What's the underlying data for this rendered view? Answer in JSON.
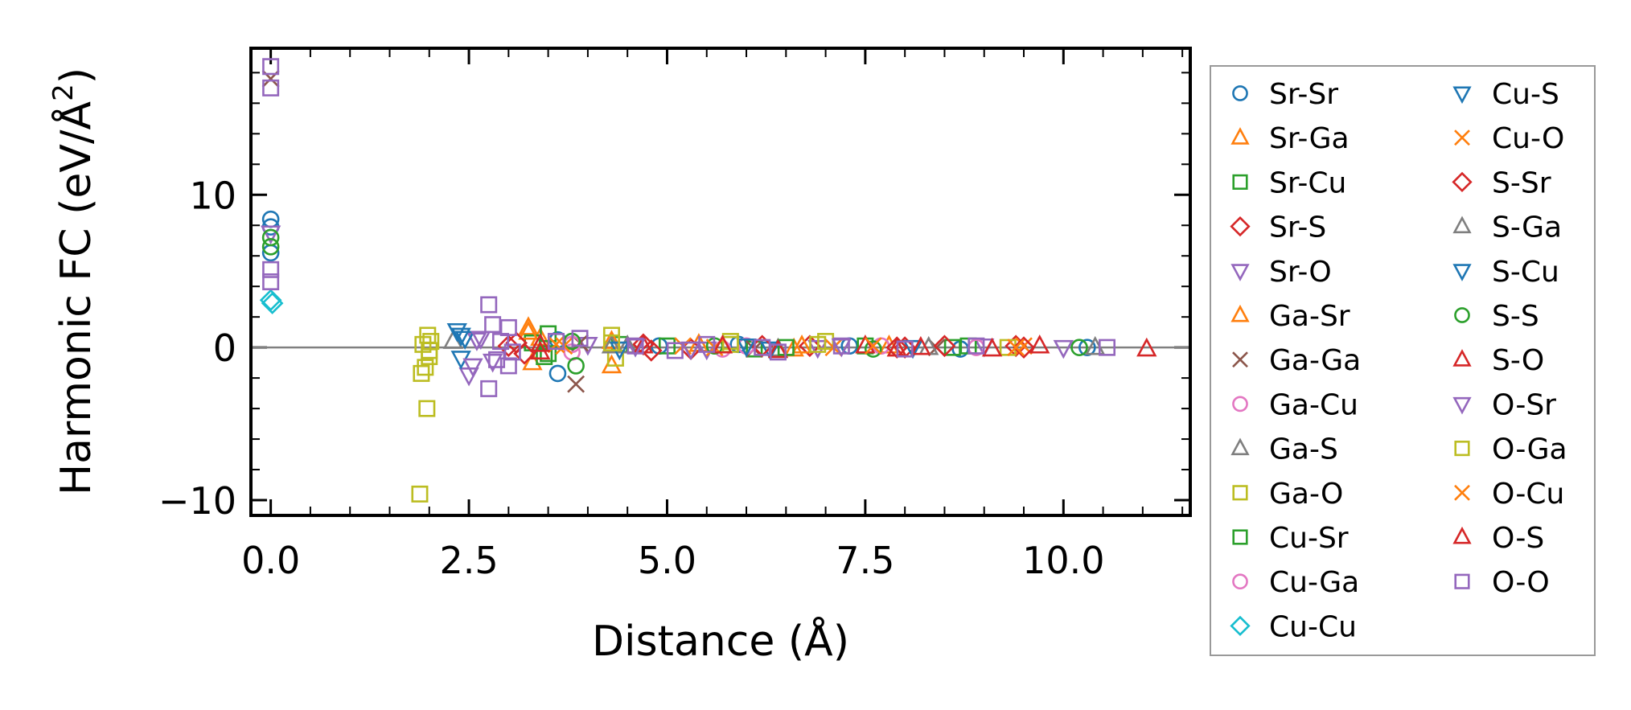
{
  "chart_data": {
    "type": "scatter",
    "title": "",
    "xlabel": "Distance (Å)",
    "ylabel_main": "Harmonic FC (eV/Å",
    "ylabel_sup": "2",
    "ylabel_close": ")",
    "xlim": [
      -0.25,
      11.6
    ],
    "ylim": [
      -11,
      19.6
    ],
    "xticks": [
      0.0,
      2.5,
      5.0,
      7.5,
      10.0
    ],
    "xtick_labels": [
      "0.0",
      "2.5",
      "5.0",
      "7.5",
      "10.0"
    ],
    "yticks": [
      -10,
      0,
      10
    ],
    "ytick_labels": [
      "−10",
      "0",
      "10"
    ],
    "zero_line": 0,
    "legend_location": "outside-right",
    "legend_columns": 2,
    "series": [
      {
        "name": "Sr-Sr",
        "marker": "circle",
        "color": "#1f77b4",
        "points": [
          [
            0,
            8.4
          ],
          [
            0,
            7.9
          ],
          [
            0,
            6.2
          ],
          [
            3.62,
            -1.7
          ],
          [
            3.62,
            0.5
          ],
          [
            4.9,
            0.1
          ],
          [
            5.9,
            0.2
          ],
          [
            7.3,
            0.1
          ],
          [
            8.7,
            -0.1
          ],
          [
            10.3,
            0
          ]
        ]
      },
      {
        "name": "Sr-Ga",
        "marker": "triangle-up",
        "color": "#ff7f0e",
        "points": [
          [
            3.25,
            1.3
          ],
          [
            3.4,
            0.6
          ],
          [
            3.3,
            -1.0
          ],
          [
            4.3,
            -1.2
          ],
          [
            5.4,
            0.2
          ],
          [
            6.6,
            -0.1
          ],
          [
            7.8,
            0.1
          ]
        ]
      },
      {
        "name": "Sr-Cu",
        "marker": "square",
        "color": "#2ca02c",
        "points": [
          [
            3.3,
            0.3
          ],
          [
            3.45,
            -0.6
          ],
          [
            3.5,
            0.9
          ],
          [
            4.4,
            0.2
          ],
          [
            6.1,
            -0.1
          ],
          [
            7.5,
            0.1
          ],
          [
            8.6,
            0
          ]
        ]
      },
      {
        "name": "Sr-S",
        "marker": "diamond",
        "color": "#d62728",
        "points": [
          [
            3.0,
            0.1
          ],
          [
            3.2,
            -0.4
          ],
          [
            4.7,
            0.2
          ],
          [
            5.3,
            -0.1
          ],
          [
            6.8,
            0.1
          ],
          [
            8.0,
            0
          ],
          [
            9.4,
            0.1
          ]
        ]
      },
      {
        "name": "Sr-O",
        "marker": "triangle-down",
        "color": "#9467bd",
        "points": [
          [
            0,
            7.5
          ],
          [
            2.5,
            -1.8
          ],
          [
            2.6,
            0.5
          ],
          [
            2.8,
            -0.9
          ],
          [
            4.0,
            0.2
          ],
          [
            5.5,
            -0.1
          ],
          [
            6.9,
            0
          ],
          [
            9.0,
            0.1
          ]
        ]
      },
      {
        "name": "Ga-Sr",
        "marker": "triangle-up",
        "color": "#ff7f0e",
        "points": [
          [
            3.25,
            1.0
          ],
          [
            4.3,
            0.4
          ],
          [
            6.7,
            0.1
          ],
          [
            7.9,
            -0.1
          ]
        ]
      },
      {
        "name": "Ga-Ga",
        "marker": "x",
        "color": "#8c564b",
        "points": [
          [
            0,
            17.6
          ],
          [
            3.85,
            -2.4
          ],
          [
            3.9,
            0.3
          ],
          [
            6.1,
            -0.1
          ],
          [
            8.4,
            0
          ]
        ]
      },
      {
        "name": "Ga-Cu",
        "marker": "circle",
        "color": "#e377c2",
        "points": [
          [
            3.8,
            0.2
          ],
          [
            5.7,
            -0.1
          ],
          [
            7.7,
            0.1
          ]
        ]
      },
      {
        "name": "Ga-S",
        "marker": "triangle-up",
        "color": "#7f7f7f",
        "points": [
          [
            2.3,
            0.4
          ],
          [
            4.5,
            0.1
          ],
          [
            6.4,
            -0.1
          ],
          [
            8.3,
            0
          ]
        ]
      },
      {
        "name": "Ga-O",
        "marker": "square",
        "color": "#bcbd22",
        "points": [
          [
            1.88,
            -9.6
          ],
          [
            1.9,
            -1.7
          ],
          [
            1.95,
            -1.3
          ],
          [
            1.97,
            -4.0
          ],
          [
            1.98,
            0.8
          ],
          [
            2.0,
            -0.6
          ],
          [
            2.02,
            0.4
          ],
          [
            4.3,
            0.8
          ],
          [
            4.35,
            -0.7
          ],
          [
            5.8,
            0.4
          ],
          [
            7.0,
            0.4
          ],
          [
            9.3,
            0
          ]
        ]
      },
      {
        "name": "Cu-Sr",
        "marker": "square",
        "color": "#2ca02c",
        "points": [
          [
            3.5,
            -0.4
          ],
          [
            5.0,
            0.1
          ],
          [
            6.5,
            0
          ],
          [
            8.8,
            0.1
          ]
        ]
      },
      {
        "name": "Cu-Ga",
        "marker": "circle",
        "color": "#e377c2",
        "points": [
          [
            3.8,
            -0.3
          ],
          [
            6.0,
            0.1
          ],
          [
            8.9,
            0
          ]
        ]
      },
      {
        "name": "Cu-Cu",
        "marker": "diamond",
        "color": "#17becf",
        "points": [
          [
            0,
            3.1
          ],
          [
            0.02,
            2.9
          ]
        ]
      },
      {
        "name": "Cu-S",
        "marker": "triangle-down",
        "color": "#1f77b4",
        "points": [
          [
            2.35,
            1.1
          ],
          [
            2.4,
            -0.7
          ],
          [
            2.45,
            0.6
          ],
          [
            4.6,
            0.1
          ],
          [
            6.3,
            -0.1
          ],
          [
            8.1,
            0
          ]
        ]
      },
      {
        "name": "Cu-O",
        "marker": "x",
        "color": "#ff7f0e",
        "points": [
          [
            3.6,
            0.2
          ],
          [
            5.2,
            0.1
          ],
          [
            7.1,
            0
          ],
          [
            9.5,
            0.1
          ]
        ]
      },
      {
        "name": "S-Sr",
        "marker": "diamond",
        "color": "#d62728",
        "points": [
          [
            3.1,
            0.3
          ],
          [
            4.8,
            -0.2
          ],
          [
            6.2,
            0.1
          ],
          [
            7.9,
            0
          ],
          [
            8.5,
            0.1
          ],
          [
            9.5,
            0
          ]
        ]
      },
      {
        "name": "S-Ga",
        "marker": "triangle-up",
        "color": "#7f7f7f",
        "points": [
          [
            4.3,
            0.1
          ],
          [
            10.4,
            0
          ]
        ]
      },
      {
        "name": "S-Cu",
        "marker": "triangle-down",
        "color": "#1f77b4",
        "points": [
          [
            2.4,
            0.8
          ],
          [
            4.4,
            -0.1
          ],
          [
            6.0,
            0.1
          ]
        ]
      },
      {
        "name": "S-S",
        "marker": "circle",
        "color": "#2ca02c",
        "points": [
          [
            0,
            6.6
          ],
          [
            0,
            7.2
          ],
          [
            3.85,
            -1.2
          ],
          [
            3.8,
            0.4
          ],
          [
            5.6,
            0.1
          ],
          [
            7.6,
            -0.1
          ],
          [
            10.2,
            0
          ]
        ]
      },
      {
        "name": "S-O",
        "marker": "triangle-up",
        "color": "#d62728",
        "points": [
          [
            3.4,
            0.2
          ],
          [
            4.7,
            0.1
          ],
          [
            6.4,
            -0.2
          ],
          [
            7.5,
            0.1
          ],
          [
            8.2,
            0
          ],
          [
            9.1,
            -0.1
          ],
          [
            9.7,
            0.1
          ],
          [
            11.05,
            -0.1
          ]
        ]
      },
      {
        "name": "O-Sr",
        "marker": "triangle-down",
        "color": "#9467bd",
        "points": [
          [
            2.55,
            -1.2
          ],
          [
            2.65,
            0.6
          ],
          [
            4.6,
            0.1
          ],
          [
            5.3,
            -0.1
          ],
          [
            7.2,
            0.1
          ],
          [
            10.0,
            0
          ]
        ]
      },
      {
        "name": "O-Ga",
        "marker": "square",
        "color": "#bcbd22",
        "points": [
          [
            1.92,
            0.2
          ],
          [
            2.0,
            -0.2
          ],
          [
            4.3,
            0.3
          ],
          [
            5.8,
            0.2
          ],
          [
            6.9,
            0.2
          ]
        ]
      },
      {
        "name": "O-Cu",
        "marker": "x",
        "color": "#ff7f0e",
        "points": [
          [
            3.7,
            0.1
          ],
          [
            5.6,
            0
          ],
          [
            7.6,
            0.1
          ],
          [
            9.4,
            0
          ]
        ]
      },
      {
        "name": "O-S",
        "marker": "triangle-up",
        "color": "#d62728",
        "points": [
          [
            3.4,
            -0.3
          ],
          [
            5.7,
            0.1
          ],
          [
            7.9,
            -0.1
          ]
        ]
      },
      {
        "name": "O-O",
        "marker": "square",
        "color": "#9467bd",
        "points": [
          [
            0,
            18.4
          ],
          [
            0,
            17.0
          ],
          [
            0,
            5.1
          ],
          [
            0,
            4.3
          ],
          [
            2.75,
            2.8
          ],
          [
            2.75,
            -2.7
          ],
          [
            2.8,
            1.5
          ],
          [
            2.85,
            -0.8
          ],
          [
            2.9,
            0.4
          ],
          [
            3.0,
            -1.2
          ],
          [
            3.0,
            1.3
          ],
          [
            3.05,
            -0.3
          ],
          [
            3.6,
            0.4
          ],
          [
            3.9,
            0.6
          ],
          [
            4.6,
            0.1
          ],
          [
            5.1,
            -0.2
          ],
          [
            5.5,
            0.2
          ],
          [
            6.2,
            0
          ],
          [
            6.4,
            -0.3
          ],
          [
            7.2,
            0.1
          ],
          [
            8.0,
            -0.1
          ],
          [
            8.9,
            0.1
          ],
          [
            10.55,
            0
          ]
        ]
      }
    ]
  }
}
